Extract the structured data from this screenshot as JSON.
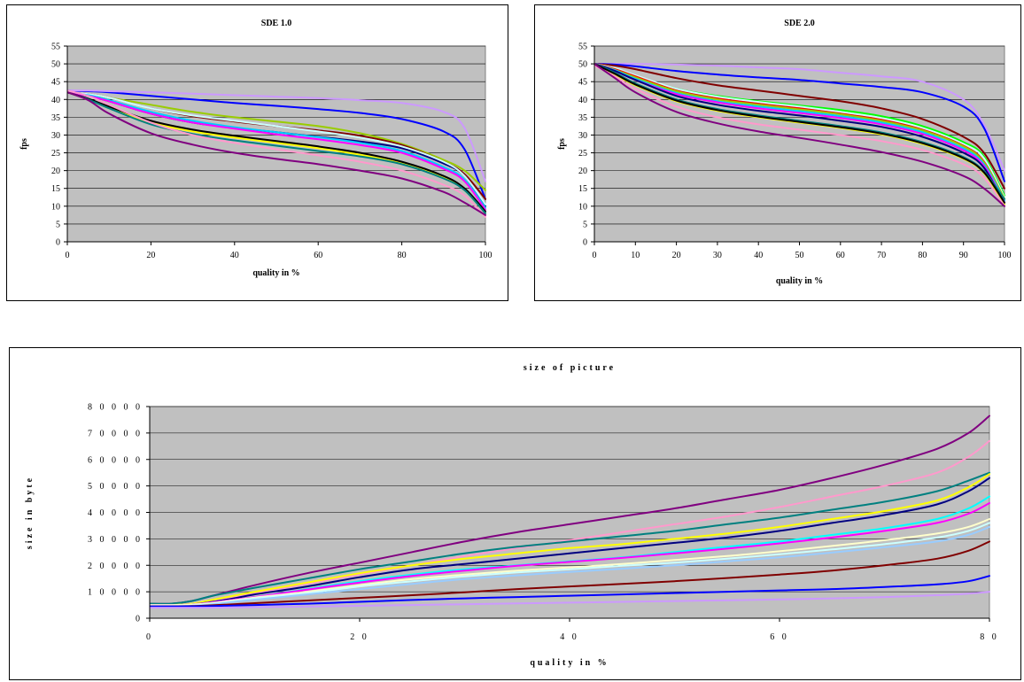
{
  "chart_data": [
    {
      "type": "line",
      "title": "SDE 1.0",
      "xlabel": "quality in %",
      "ylabel": "fps",
      "xlim": [
        0,
        100
      ],
      "ylim": [
        0,
        55
      ],
      "xticks": [
        0,
        20,
        40,
        60,
        80,
        100
      ],
      "yticks": [
        0,
        5,
        10,
        15,
        20,
        25,
        30,
        35,
        40,
        45,
        50,
        55
      ],
      "grid": true,
      "legend": "none",
      "x": [
        0,
        5,
        10,
        20,
        30,
        40,
        50,
        60,
        70,
        80,
        90,
        95,
        100
      ],
      "series": [
        {
          "color": "#0000ff",
          "values": [
            42.5,
            42.3,
            42,
            41,
            40,
            39,
            38.2,
            37.3,
            36.2,
            34.5,
            31,
            26,
            12
          ]
        },
        {
          "color": "#cc99ff",
          "values": [
            42.5,
            42.5,
            42.3,
            42,
            41.6,
            41.2,
            40.8,
            40.4,
            39.8,
            39,
            36.5,
            32,
            17
          ]
        },
        {
          "color": "#99cc00",
          "values": [
            42,
            41.5,
            40.5,
            38.5,
            36.5,
            35,
            33.8,
            32.5,
            30.5,
            27.5,
            23,
            20,
            14.5
          ]
        },
        {
          "color": "#800000",
          "values": [
            42,
            41.5,
            40.5,
            37.5,
            35.3,
            33.8,
            32.5,
            31.3,
            29.8,
            27.2,
            22.5,
            19,
            12
          ]
        },
        {
          "color": "#000080",
          "values": [
            42,
            41,
            39.5,
            36,
            33.5,
            32,
            30.8,
            29.5,
            28.2,
            26.3,
            22,
            18.5,
            10
          ]
        },
        {
          "color": "#ccffff",
          "values": [
            42,
            41.5,
            40.5,
            37.5,
            35.5,
            34,
            32.5,
            31,
            29.3,
            26.8,
            22.5,
            18.5,
            10.5
          ]
        },
        {
          "color": "#00ccff",
          "values": [
            42,
            41.2,
            39.8,
            36.5,
            34,
            32.2,
            30.8,
            29.4,
            27.8,
            25.5,
            21,
            17.5,
            9.5
          ]
        },
        {
          "color": "#ff00ff",
          "values": [
            42,
            41,
            39.5,
            36,
            33.5,
            31.8,
            30.2,
            28.8,
            27.2,
            25,
            20.5,
            17,
            9
          ]
        },
        {
          "color": "#ffff00",
          "values": [
            42,
            40,
            37.5,
            33.5,
            31,
            29.3,
            27.8,
            26.3,
            24.5,
            22,
            18,
            14.5,
            8
          ]
        },
        {
          "color": "#000000",
          "values": [
            42,
            40.2,
            38,
            34,
            31.5,
            29.8,
            28.3,
            26.8,
            25,
            22.5,
            18.5,
            15,
            8.5
          ]
        },
        {
          "color": "#008080",
          "values": [
            42,
            40,
            37.5,
            33,
            30.3,
            28.5,
            27,
            25.5,
            24,
            21.8,
            17.8,
            14.5,
            8
          ]
        },
        {
          "color": "#ff99cc",
          "values": [
            42.5,
            41,
            38.5,
            33.5,
            30,
            27.8,
            26,
            24.3,
            22.5,
            20,
            16,
            13,
            7
          ]
        },
        {
          "color": "#800080",
          "values": [
            42,
            39.8,
            36,
            30.5,
            27.3,
            25,
            23.3,
            21.8,
            20,
            17.8,
            14,
            11,
            7.5
          ]
        }
      ]
    },
    {
      "type": "line",
      "title": "SDE 2.0",
      "xlabel": "quality in %",
      "ylabel": "fps",
      "xlim": [
        0,
        100
      ],
      "ylim": [
        0,
        55
      ],
      "xticks": [
        0,
        10,
        20,
        30,
        40,
        50,
        60,
        70,
        80,
        90,
        100
      ],
      "yticks": [
        0,
        5,
        10,
        15,
        20,
        25,
        30,
        35,
        40,
        45,
        50,
        55
      ],
      "grid": true,
      "legend": "none",
      "x": [
        0,
        5,
        10,
        20,
        30,
        40,
        50,
        60,
        70,
        80,
        90,
        95,
        100
      ],
      "series": [
        {
          "color": "#cc99ff",
          "values": [
            50,
            50,
            50,
            49.8,
            49.5,
            49,
            48.5,
            47.5,
            46.5,
            45,
            40,
            33,
            20
          ]
        },
        {
          "color": "#0000ff",
          "values": [
            50,
            49.8,
            49.3,
            48,
            47,
            46.2,
            45.5,
            44.5,
            43.5,
            42,
            38,
            32,
            17
          ]
        },
        {
          "color": "#800000",
          "values": [
            50,
            49.5,
            48.5,
            46,
            44,
            42.5,
            41,
            39.5,
            37.5,
            34.5,
            29.5,
            25,
            15
          ]
        },
        {
          "color": "#00ff00",
          "values": [
            50,
            48.5,
            46.5,
            43,
            41,
            39.5,
            38.3,
            37,
            35.3,
            32.5,
            28,
            24,
            13
          ]
        },
        {
          "color": "#ccffff",
          "values": [
            50,
            48.8,
            46.8,
            43,
            40.8,
            39.3,
            38,
            36.5,
            34.8,
            32,
            27.5,
            23.5,
            12.5
          ]
        },
        {
          "color": "#ff0000",
          "values": [
            50,
            48.5,
            46.5,
            42.5,
            40.3,
            38.8,
            37.5,
            36,
            34.3,
            31.5,
            27,
            22.5,
            12
          ]
        },
        {
          "color": "#99cc00",
          "values": [
            50,
            48.3,
            46.2,
            42.3,
            40,
            38.5,
            37.2,
            35.8,
            34,
            31.3,
            26.8,
            22.3,
            12
          ]
        },
        {
          "color": "#00ccff",
          "values": [
            50,
            48.2,
            45.8,
            41.8,
            39.5,
            38,
            36.7,
            35.3,
            33.5,
            30.8,
            26.2,
            21.8,
            11.5
          ]
        },
        {
          "color": "#ff00ff",
          "values": [
            50,
            48,
            45.5,
            41.5,
            39.2,
            37.5,
            36.2,
            34.8,
            33,
            30.3,
            25.7,
            21.3,
            11
          ]
        },
        {
          "color": "#000080",
          "values": [
            50,
            48,
            45.5,
            41,
            38.5,
            36.8,
            35.5,
            34,
            32.3,
            29.5,
            25,
            20.8,
            10.5
          ]
        },
        {
          "color": "#008080",
          "values": [
            50,
            47.5,
            44.5,
            40,
            37.3,
            35.5,
            34,
            32.5,
            30.7,
            28,
            23.8,
            19.8,
            12
          ]
        },
        {
          "color": "#ffff00",
          "values": [
            50,
            47,
            44,
            39.5,
            36.8,
            35,
            33.5,
            32,
            30.2,
            27.5,
            23.3,
            19.3,
            10.5
          ]
        },
        {
          "color": "#000000",
          "values": [
            50,
            47.2,
            44.2,
            39.7,
            37,
            35.2,
            33.7,
            32.2,
            30.4,
            27.7,
            23.5,
            19.5,
            11
          ]
        },
        {
          "color": "#ff99cc",
          "values": [
            49.5,
            46.5,
            43,
            38,
            35,
            33,
            31.5,
            30,
            28.3,
            25.8,
            21.8,
            18,
            10
          ]
        },
        {
          "color": "#800080",
          "values": [
            50,
            46,
            42,
            36.5,
            33.3,
            31,
            29.2,
            27.3,
            25.2,
            22.5,
            18.5,
            15,
            10
          ]
        }
      ]
    },
    {
      "type": "line",
      "title": "size of picture",
      "xlabel": "quality in %",
      "ylabel": "size in byte",
      "xlim": [
        0,
        80
      ],
      "ylim": [
        0,
        80000
      ],
      "xticks": [
        0,
        20,
        40,
        60,
        80
      ],
      "yticks": [
        0,
        10000,
        20000,
        30000,
        40000,
        50000,
        60000,
        70000,
        80000
      ],
      "tick_labels_x": [
        "0",
        "2 0",
        "4 0",
        "6 0",
        "8 0"
      ],
      "tick_labels_y": [
        "0",
        "1 0 0 0 0",
        "2 0 0 0 0",
        "3 0 0 0 0",
        "4 0 0 0 0",
        "5 0 0 0 0",
        "6 0 0 0 0",
        "7 0 0 0 0",
        "8 0 0 0 0"
      ],
      "grid": true,
      "legend": "none",
      "x": [
        0,
        2,
        4,
        6,
        8,
        10,
        15,
        20,
        25,
        30,
        35,
        40,
        45,
        50,
        55,
        60,
        65,
        70,
        75,
        78,
        80
      ],
      "series": [
        {
          "color": "#800080",
          "values": [
            5500,
            5500,
            6500,
            8500,
            10500,
            12500,
            17000,
            21000,
            25000,
            29000,
            32500,
            35500,
            38500,
            41500,
            45000,
            48500,
            53000,
            58000,
            64000,
            70000,
            76500
          ]
        },
        {
          "color": "#ff99cc",
          "values": [
            5000,
            5000,
            5500,
            6500,
            8000,
            9500,
            13000,
            16500,
            20000,
            23500,
            26500,
            29500,
            32500,
            35500,
            38500,
            42000,
            46000,
            50000,
            55000,
            61000,
            67000
          ]
        },
        {
          "color": "#008080",
          "values": [
            5500,
            5500,
            6500,
            8500,
            10000,
            11500,
            15000,
            18500,
            21500,
            24500,
            27000,
            29000,
            31000,
            33000,
            35500,
            38000,
            41000,
            44000,
            48000,
            52000,
            55000
          ]
        },
        {
          "color": "#ffff00",
          "values": [
            5000,
            5000,
            5500,
            7000,
            8500,
            10000,
            13500,
            17000,
            20000,
            22500,
            24500,
            26500,
            28000,
            30000,
            32000,
            34500,
            37500,
            40500,
            44500,
            49500,
            54500
          ]
        },
        {
          "color": "#000080",
          "values": [
            5000,
            5000,
            5200,
            6200,
            7500,
            9000,
            12000,
            15500,
            18500,
            20500,
            22500,
            24500,
            26500,
            28500,
            30500,
            33000,
            36000,
            39000,
            43000,
            48000,
            53000
          ]
        },
        {
          "color": "#00ffff",
          "values": [
            5000,
            5000,
            5200,
            6000,
            7000,
            8000,
            11000,
            14000,
            16500,
            18500,
            20000,
            21500,
            23000,
            25000,
            27000,
            29000,
            31500,
            34000,
            37500,
            41500,
            46000
          ]
        },
        {
          "color": "#ff00ff",
          "values": [
            5000,
            5000,
            5200,
            6000,
            7000,
            8000,
            10800,
            13500,
            16000,
            18000,
            19800,
            21300,
            22800,
            24500,
            26300,
            28300,
            30500,
            33000,
            36000,
            39500,
            43500
          ]
        },
        {
          "color": "#ffffcc",
          "values": [
            5000,
            5000,
            5200,
            5800,
            6800,
            7800,
            10000,
            12500,
            14800,
            16500,
            18000,
            19200,
            20500,
            22000,
            23500,
            25300,
            27300,
            29500,
            32000,
            34500,
            37500
          ]
        },
        {
          "color": "#ccffff",
          "values": [
            4500,
            4500,
            4800,
            5500,
            6500,
            7500,
            9500,
            12000,
            14000,
            15800,
            17300,
            18500,
            19800,
            21000,
            22500,
            24200,
            26000,
            28000,
            30500,
            33000,
            36000
          ]
        },
        {
          "color": "#99ccff",
          "values": [
            4500,
            4500,
            4700,
            5300,
            6200,
            7000,
            9000,
            11000,
            13000,
            14800,
            16200,
            17500,
            18700,
            20000,
            21500,
            23000,
            24800,
            26800,
            29000,
            31500,
            34500
          ]
        },
        {
          "color": "#800000",
          "values": [
            4500,
            4500,
            4600,
            4900,
            5300,
            5700,
            6700,
            7700,
            8700,
            9800,
            11000,
            12000,
            13000,
            14000,
            15200,
            16500,
            18000,
            20000,
            22500,
            25500,
            29000
          ]
        },
        {
          "color": "#0000ff",
          "values": [
            4500,
            4500,
            4500,
            4600,
            4800,
            5000,
            5500,
            6200,
            6900,
            7500,
            8000,
            8500,
            9000,
            9500,
            10000,
            10500,
            11000,
            11800,
            12800,
            14000,
            16000
          ]
        },
        {
          "color": "#cc99ff",
          "values": [
            4000,
            4000,
            4000,
            4000,
            4100,
            4200,
            4400,
            4700,
            5000,
            5300,
            5600,
            5900,
            6200,
            6500,
            6800,
            7100,
            7500,
            8000,
            8700,
            9300,
            10000
          ]
        }
      ]
    }
  ]
}
